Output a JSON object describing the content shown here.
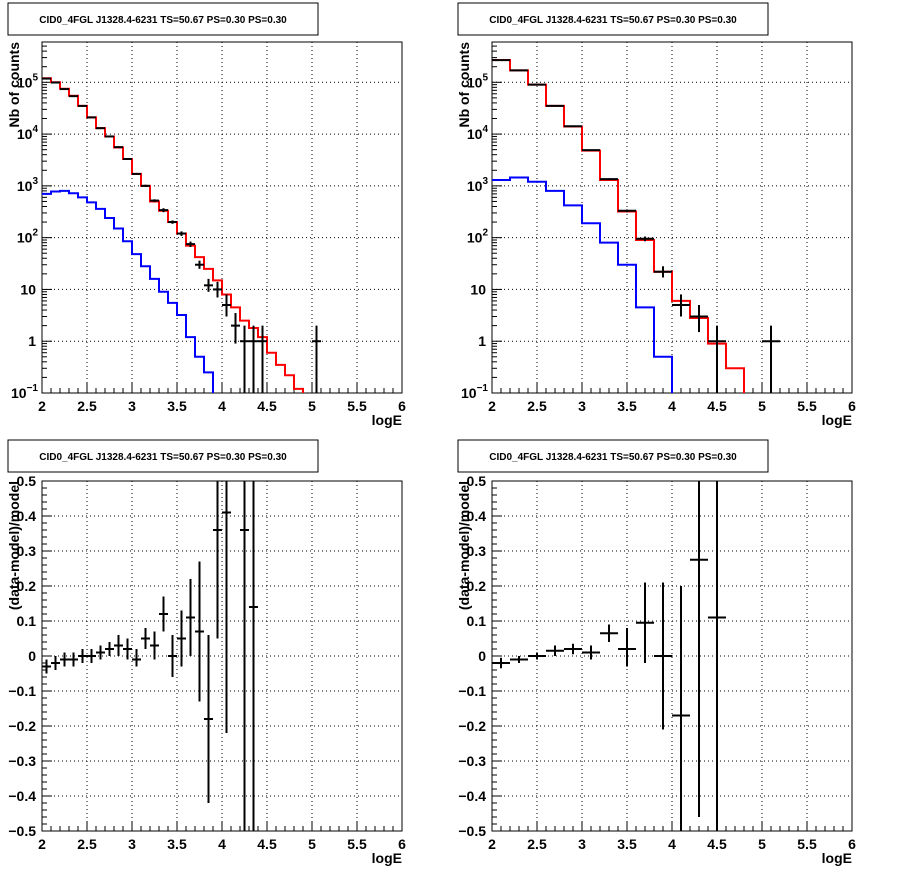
{
  "colors": {
    "model": "#ff0000",
    "background": "#0000ff",
    "data": "#000000",
    "grid": "#000000"
  },
  "chart_data": [
    {
      "type": "line",
      "title": "CID0_4FGL J1328.4-6231 TS=50.67 PS=0.30 PS=0.30",
      "xlabel": "logE",
      "ylabel": "Nb of counts",
      "xlim": [
        2,
        6
      ],
      "ylim": [
        0.1,
        600000
      ],
      "yscale": "log",
      "grid": true,
      "xticks": [
        "2",
        "2.5",
        "3",
        "3.5",
        "4",
        "4.5",
        "5",
        "5.5",
        "6"
      ],
      "yticks": [
        {
          "v": 0.1,
          "label": "10",
          "exp": "−1"
        },
        {
          "v": 1,
          "label": "1",
          "exp": ""
        },
        {
          "v": 10,
          "label": "10",
          "exp": ""
        },
        {
          "v": 100,
          "label": "10",
          "exp": "2"
        },
        {
          "v": 1000,
          "label": "10",
          "exp": "3"
        },
        {
          "v": 10000,
          "label": "10",
          "exp": "4"
        },
        {
          "v": 100000,
          "label": "10",
          "exp": "5"
        }
      ],
      "bin_edges": [
        2,
        2.1,
        2.2,
        2.3,
        2.4,
        2.5,
        2.6,
        2.7,
        2.8,
        2.9,
        3,
        3.1,
        3.2,
        3.3,
        3.4,
        3.5,
        3.6,
        3.7,
        3.8,
        3.9,
        4,
        4.1,
        4.2,
        4.3,
        4.4,
        4.5,
        4.6,
        4.7,
        4.8,
        4.9,
        5,
        5.1,
        5.2,
        5.3,
        5.4,
        5.5,
        5.6,
        5.7,
        5.8,
        5.9,
        6
      ],
      "series": [
        {
          "role": "model",
          "values": [
            120000,
            100000,
            75000,
            55000,
            35000,
            21000,
            13000,
            9000,
            5500,
            3300,
            1700,
            1000,
            500,
            330,
            200,
            120,
            70,
            42,
            25,
            15,
            8,
            4.5,
            2.5,
            1.8,
            1.2,
            0.6,
            0.35,
            0.22,
            0.12,
            0.08,
            0.08,
            0.08,
            0.08,
            0.08,
            0.08,
            0.08,
            0.08,
            0.08,
            0.08,
            0.08
          ]
        },
        {
          "role": "background",
          "values": [
            700,
            780,
            800,
            720,
            600,
            480,
            360,
            240,
            150,
            85,
            48,
            28,
            16,
            9,
            5.5,
            3.2,
            1.2,
            0.5,
            0.25,
            0.08,
            0.08,
            0.08,
            0.08,
            0.08,
            0.08,
            0.08,
            0.08,
            0.08,
            0.08,
            0.08,
            0.08,
            0.08,
            0.08,
            0.08,
            0.08,
            0.08,
            0.08,
            0.08,
            0.08,
            0.08
          ]
        },
        {
          "role": "data",
          "points": [
            {
              "x": 2.05,
              "xerr": 0.05,
              "y": 118000,
              "lo": 117000,
              "hi": 119000
            },
            {
              "x": 2.15,
              "xerr": 0.05,
              "y": 99000,
              "lo": 98000,
              "hi": 100000
            },
            {
              "x": 2.25,
              "xerr": 0.05,
              "y": 74000,
              "lo": 73000,
              "hi": 75000
            },
            {
              "x": 2.35,
              "xerr": 0.05,
              "y": 54000,
              "lo": 53500,
              "hi": 54500
            },
            {
              "x": 2.45,
              "xerr": 0.05,
              "y": 35000,
              "lo": 34500,
              "hi": 35500
            },
            {
              "x": 2.55,
              "xerr": 0.05,
              "y": 21000,
              "lo": 20700,
              "hi": 21300
            },
            {
              "x": 2.65,
              "xerr": 0.05,
              "y": 13000,
              "lo": 12800,
              "hi": 13200
            },
            {
              "x": 2.75,
              "xerr": 0.05,
              "y": 9000,
              "lo": 8800,
              "hi": 9200
            },
            {
              "x": 2.85,
              "xerr": 0.05,
              "y": 5600,
              "lo": 5400,
              "hi": 5800
            },
            {
              "x": 2.95,
              "xerr": 0.05,
              "y": 3300,
              "lo": 3200,
              "hi": 3400
            },
            {
              "x": 3.05,
              "xerr": 0.05,
              "y": 1700,
              "lo": 1650,
              "hi": 1750
            },
            {
              "x": 3.15,
              "xerr": 0.05,
              "y": 1000,
              "lo": 950,
              "hi": 1050
            },
            {
              "x": 3.25,
              "xerr": 0.05,
              "y": 520,
              "lo": 490,
              "hi": 550
            },
            {
              "x": 3.35,
              "xerr": 0.05,
              "y": 340,
              "lo": 310,
              "hi": 370
            },
            {
              "x": 3.45,
              "xerr": 0.05,
              "y": 200,
              "lo": 185,
              "hi": 215
            },
            {
              "x": 3.55,
              "xerr": 0.05,
              "y": 120,
              "lo": 108,
              "hi": 132
            },
            {
              "x": 3.65,
              "xerr": 0.05,
              "y": 75,
              "lo": 66,
              "hi": 84
            },
            {
              "x": 3.75,
              "xerr": 0.05,
              "y": 30,
              "lo": 25,
              "hi": 36
            },
            {
              "x": 3.85,
              "xerr": 0.05,
              "y": 12,
              "lo": 9,
              "hi": 16
            },
            {
              "x": 3.95,
              "xerr": 0.05,
              "y": 10,
              "lo": 7,
              "hi": 14
            },
            {
              "x": 4.05,
              "xerr": 0.05,
              "y": 5,
              "lo": 3,
              "hi": 8
            },
            {
              "x": 4.15,
              "xerr": 0.05,
              "y": 2,
              "lo": 0.9,
              "hi": 3.5
            },
            {
              "x": 4.25,
              "xerr": 0.05,
              "y": 1,
              "lo": 0.1,
              "hi": 2
            },
            {
              "x": 4.35,
              "xerr": 0.05,
              "y": 1,
              "lo": 0.1,
              "hi": 2
            },
            {
              "x": 4.45,
              "xerr": 0.05,
              "y": 1,
              "lo": 0.1,
              "hi": 2
            },
            {
              "x": 5.05,
              "xerr": 0.05,
              "y": 1,
              "lo": 0.1,
              "hi": 2
            }
          ]
        }
      ]
    },
    {
      "type": "line",
      "title": "CID0_4FGL J1328.4-6231 TS=50.67 PS=0.30 PS=0.30",
      "xlabel": "logE",
      "ylabel": "Nb of counts",
      "xlim": [
        2,
        6
      ],
      "ylim": [
        0.1,
        600000
      ],
      "yscale": "log",
      "grid": true,
      "xticks": [
        "2",
        "2.5",
        "3",
        "3.5",
        "4",
        "4.5",
        "5",
        "5.5",
        "6"
      ],
      "yticks": [
        {
          "v": 0.1,
          "label": "10",
          "exp": "−1"
        },
        {
          "v": 1,
          "label": "1",
          "exp": ""
        },
        {
          "v": 10,
          "label": "10",
          "exp": ""
        },
        {
          "v": 100,
          "label": "10",
          "exp": "2"
        },
        {
          "v": 1000,
          "label": "10",
          "exp": "3"
        },
        {
          "v": 10000,
          "label": "10",
          "exp": "4"
        },
        {
          "v": 100000,
          "label": "10",
          "exp": "5"
        }
      ],
      "bin_edges": [
        2,
        2.2,
        2.4,
        2.6,
        2.8,
        3,
        3.2,
        3.4,
        3.6,
        3.8,
        4,
        4.2,
        4.4,
        4.6,
        4.8,
        5,
        5.2,
        5.4,
        5.6,
        5.8,
        6
      ],
      "series": [
        {
          "role": "model",
          "values": [
            270000,
            170000,
            90000,
            35000,
            14000,
            4800,
            1300,
            320,
            90,
            22,
            6,
            2.8,
            0.9,
            0.3,
            0.08,
            0.08,
            0.08,
            0.08,
            0.08,
            0.08
          ]
        },
        {
          "role": "background",
          "values": [
            1300,
            1450,
            1200,
            800,
            420,
            190,
            80,
            30,
            4.5,
            0.5,
            0.08,
            0.08,
            0.08,
            0.08,
            0.08,
            0.08,
            0.08,
            0.08,
            0.08,
            0.08
          ]
        },
        {
          "role": "data",
          "points": [
            {
              "x": 2.1,
              "xerr": 0.1,
              "y": 268000,
              "lo": 266000,
              "hi": 270000
            },
            {
              "x": 2.3,
              "xerr": 0.1,
              "y": 170000,
              "lo": 169000,
              "hi": 171000
            },
            {
              "x": 2.5,
              "xerr": 0.1,
              "y": 90000,
              "lo": 89500,
              "hi": 90500
            },
            {
              "x": 2.7,
              "xerr": 0.1,
              "y": 35000,
              "lo": 34700,
              "hi": 35300
            },
            {
              "x": 2.9,
              "xerr": 0.1,
              "y": 14200,
              "lo": 14000,
              "hi": 14400
            },
            {
              "x": 3.1,
              "xerr": 0.1,
              "y": 4900,
              "lo": 4800,
              "hi": 5000
            },
            {
              "x": 3.3,
              "xerr": 0.1,
              "y": 1350,
              "lo": 1300,
              "hi": 1400
            },
            {
              "x": 3.5,
              "xerr": 0.1,
              "y": 330,
              "lo": 310,
              "hi": 350
            },
            {
              "x": 3.7,
              "xerr": 0.1,
              "y": 95,
              "lo": 85,
              "hi": 105
            },
            {
              "x": 3.9,
              "xerr": 0.1,
              "y": 22,
              "lo": 17,
              "hi": 28
            },
            {
              "x": 4.1,
              "xerr": 0.1,
              "y": 5,
              "lo": 3,
              "hi": 8
            },
            {
              "x": 4.3,
              "xerr": 0.1,
              "y": 3,
              "lo": 1.5,
              "hi": 5
            },
            {
              "x": 4.5,
              "xerr": 0.1,
              "y": 1,
              "lo": 0.1,
              "hi": 2
            },
            {
              "x": 5.1,
              "xerr": 0.1,
              "y": 1,
              "lo": 0.1,
              "hi": 2
            }
          ]
        }
      ]
    },
    {
      "type": "scatter",
      "title": "CID0_4FGL J1328.4-6231 TS=50.67 PS=0.30 PS=0.30",
      "xlabel": "logE",
      "ylabel": "(data-model)/model",
      "xlim": [
        2,
        6
      ],
      "ylim": [
        -0.5,
        0.5
      ],
      "yscale": "linear",
      "grid": true,
      "xticks": [
        "2",
        "2.5",
        "3",
        "3.5",
        "4",
        "4.5",
        "5",
        "5.5",
        "6"
      ],
      "yticks": [
        "−0.5",
        "−0.4",
        "−0.3",
        "−0.2",
        "−0.1",
        "0",
        "0.1",
        "0.2",
        "0.3",
        "0.4",
        "0.5"
      ],
      "series": [
        {
          "role": "data",
          "points": [
            {
              "x": 2.05,
              "xerr": 0.05,
              "y": -0.03,
              "lo": -0.05,
              "hi": -0.01
            },
            {
              "x": 2.15,
              "xerr": 0.05,
              "y": -0.02,
              "lo": -0.04,
              "hi": 0.0
            },
            {
              "x": 2.25,
              "xerr": 0.05,
              "y": -0.01,
              "lo": -0.03,
              "hi": 0.01
            },
            {
              "x": 2.35,
              "xerr": 0.05,
              "y": -0.01,
              "lo": -0.03,
              "hi": 0.01
            },
            {
              "x": 2.45,
              "xerr": 0.05,
              "y": 0.0,
              "lo": -0.02,
              "hi": 0.02
            },
            {
              "x": 2.55,
              "xerr": 0.05,
              "y": 0.0,
              "lo": -0.02,
              "hi": 0.02
            },
            {
              "x": 2.65,
              "xerr": 0.05,
              "y": 0.01,
              "lo": -0.01,
              "hi": 0.03
            },
            {
              "x": 2.75,
              "xerr": 0.05,
              "y": 0.02,
              "lo": 0.0,
              "hi": 0.04
            },
            {
              "x": 2.85,
              "xerr": 0.05,
              "y": 0.03,
              "lo": 0.0,
              "hi": 0.06
            },
            {
              "x": 2.95,
              "xerr": 0.05,
              "y": 0.02,
              "lo": -0.01,
              "hi": 0.05
            },
            {
              "x": 3.05,
              "xerr": 0.05,
              "y": -0.01,
              "lo": -0.03,
              "hi": 0.02
            },
            {
              "x": 3.15,
              "xerr": 0.05,
              "y": 0.05,
              "lo": 0.02,
              "hi": 0.08
            },
            {
              "x": 3.25,
              "xerr": 0.05,
              "y": 0.03,
              "lo": -0.01,
              "hi": 0.07
            },
            {
              "x": 3.35,
              "xerr": 0.05,
              "y": 0.12,
              "lo": 0.07,
              "hi": 0.17
            },
            {
              "x": 3.45,
              "xerr": 0.05,
              "y": 0.0,
              "lo": -0.06,
              "hi": 0.06
            },
            {
              "x": 3.55,
              "xerr": 0.05,
              "y": 0.05,
              "lo": -0.03,
              "hi": 0.13
            },
            {
              "x": 3.65,
              "xerr": 0.05,
              "y": 0.11,
              "lo": 0.0,
              "hi": 0.22
            },
            {
              "x": 3.75,
              "xerr": 0.05,
              "y": 0.07,
              "lo": -0.13,
              "hi": 0.27
            },
            {
              "x": 3.85,
              "xerr": 0.05,
              "y": -0.18,
              "lo": -0.42,
              "hi": 0.06
            },
            {
              "x": 3.95,
              "xerr": 0.05,
              "y": 0.36,
              "lo": 0.05,
              "hi": 0.5
            },
            {
              "x": 4.05,
              "xerr": 0.05,
              "y": 0.41,
              "lo": -0.22,
              "hi": 0.5
            },
            {
              "x": 4.25,
              "xerr": 0.05,
              "y": 0.36,
              "lo": -0.5,
              "hi": 0.5
            },
            {
              "x": 4.35,
              "xerr": 0.05,
              "y": 0.14,
              "lo": -0.5,
              "hi": 0.5
            }
          ]
        }
      ]
    },
    {
      "type": "scatter",
      "title": "CID0_4FGL J1328.4-6231 TS=50.67 PS=0.30 PS=0.30",
      "xlabel": "logE",
      "ylabel": "(data-model)/model",
      "xlim": [
        2,
        6
      ],
      "ylim": [
        -0.5,
        0.5
      ],
      "yscale": "linear",
      "grid": true,
      "xticks": [
        "2",
        "2.5",
        "3",
        "3.5",
        "4",
        "4.5",
        "5",
        "5.5",
        "6"
      ],
      "yticks": [
        "−0.5",
        "−0.4",
        "−0.3",
        "−0.2",
        "−0.1",
        "0",
        "0.1",
        "0.2",
        "0.3",
        "0.4",
        "0.5"
      ],
      "series": [
        {
          "role": "data",
          "points": [
            {
              "x": 2.1,
              "xerr": 0.1,
              "y": -0.02,
              "lo": -0.035,
              "hi": -0.005
            },
            {
              "x": 2.3,
              "xerr": 0.1,
              "y": -0.01,
              "lo": -0.02,
              "hi": 0.0
            },
            {
              "x": 2.5,
              "xerr": 0.1,
              "y": 0.0,
              "lo": -0.01,
              "hi": 0.01
            },
            {
              "x": 2.7,
              "xerr": 0.1,
              "y": 0.015,
              "lo": 0.0,
              "hi": 0.03
            },
            {
              "x": 2.9,
              "xerr": 0.1,
              "y": 0.02,
              "lo": 0.005,
              "hi": 0.035
            },
            {
              "x": 3.1,
              "xerr": 0.1,
              "y": 0.01,
              "lo": -0.01,
              "hi": 0.03
            },
            {
              "x": 3.3,
              "xerr": 0.1,
              "y": 0.065,
              "lo": 0.04,
              "hi": 0.09
            },
            {
              "x": 3.5,
              "xerr": 0.1,
              "y": 0.02,
              "lo": -0.03,
              "hi": 0.08
            },
            {
              "x": 3.7,
              "xerr": 0.1,
              "y": 0.095,
              "lo": -0.02,
              "hi": 0.21
            },
            {
              "x": 3.9,
              "xerr": 0.1,
              "y": 0.0,
              "lo": -0.21,
              "hi": 0.21
            },
            {
              "x": 4.1,
              "xerr": 0.1,
              "y": -0.17,
              "lo": -0.5,
              "hi": 0.2
            },
            {
              "x": 4.3,
              "xerr": 0.1,
              "y": 0.275,
              "lo": -0.46,
              "hi": 0.5
            },
            {
              "x": 4.5,
              "xerr": 0.1,
              "y": 0.11,
              "lo": -0.5,
              "hi": 0.5
            }
          ]
        }
      ]
    }
  ]
}
